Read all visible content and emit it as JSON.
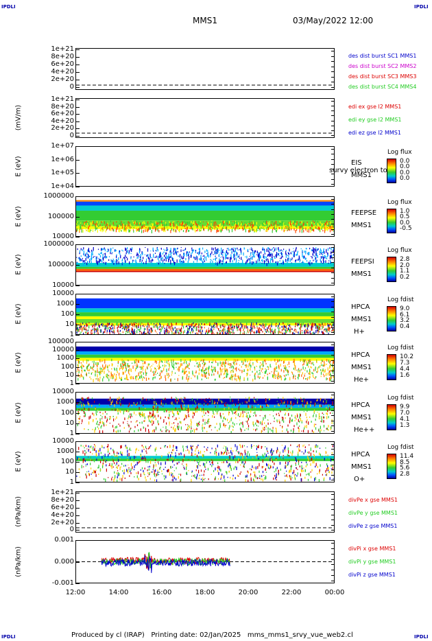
{
  "header": {
    "corner_tl": "IPDLI",
    "corner_tr": "IPDLI",
    "corner_bl": "IPDLI",
    "corner_br": "IPDLI",
    "spacecraft": "MMS1",
    "date": "03/May/2022 12:00"
  },
  "footer": "Produced by cl (IRAP)   Printing date: 02/Jan/2025   mms_mms1_srvy_vue_web2.cl",
  "colors": {
    "red": "#dd0000",
    "green": "#22cc22",
    "blue": "#0000cc",
    "magenta": "#cc00cc"
  },
  "chart_data": [
    {
      "type": "line",
      "ylabel": "",
      "yticks": [
        "1e+21",
        "8e+20",
        "6e+20",
        "4e+20",
        "2e+20",
        "0"
      ],
      "ylim": [
        0,
        1e+21
      ],
      "series": [
        {
          "name": "des dist burst SC1 MMS1",
          "color": "#0000cc"
        },
        {
          "name": "des dist burst SC2 MMS2",
          "color": "#cc00cc"
        },
        {
          "name": "des dist burst SC3 MMS3",
          "color": "#dd0000"
        },
        {
          "name": "des dist burst SC4 MMS4",
          "color": "#22cc22"
        }
      ]
    },
    {
      "type": "line",
      "ylabel": "(mV/m)",
      "yticks": [
        "1e+21",
        "8e+20",
        "6e+20",
        "4e+20",
        "2e+20",
        "0"
      ],
      "ylim": [
        0,
        1e+21
      ],
      "series": [
        {
          "name": "edi ex gse l2 MMS1",
          "color": "#dd0000"
        },
        {
          "name": "edi ey gse l2 MMS1",
          "color": "#22cc22"
        },
        {
          "name": "edi ez gse l2 MMS1",
          "color": "#0000cc"
        }
      ]
    },
    {
      "type": "heatmap",
      "ylabel": "E (eV)",
      "yticks": [
        "1e+07",
        "1e+06",
        "1e+05",
        "1e+04"
      ],
      "labels": [
        "EIS",
        "MMS1"
      ],
      "overlay": "survy electron to",
      "cbar_title": "Log flux",
      "cbar_ticks": [
        "0.0",
        "0.0",
        "0.0",
        "0.0"
      ],
      "empty": true
    },
    {
      "type": "heatmap",
      "ylabel": "E (eV)",
      "yticks": [
        "1000000",
        "100000",
        "10000"
      ],
      "labels": [
        "FEEPSE",
        "MMS1"
      ],
      "cbar_title": "Log flux",
      "cbar_ticks": [
        "1.0",
        "0.5",
        "0.0",
        "-0.5"
      ]
    },
    {
      "type": "heatmap",
      "ylabel": "E (eV)",
      "yticks": [
        "1000000",
        "100000",
        "10000"
      ],
      "labels": [
        "FEEPSI",
        "MMS1"
      ],
      "cbar_title": "Log flux",
      "cbar_ticks": [
        "2.8",
        "2.0",
        "1.1",
        "0.2"
      ]
    },
    {
      "type": "heatmap",
      "ylabel": "E (eV)",
      "yticks": [
        "10000",
        "1000",
        "100",
        "10",
        "1"
      ],
      "labels": [
        "HPCA",
        "MMS1",
        "H+"
      ],
      "cbar_title": "Log fdist",
      "cbar_ticks": [
        "9.0",
        "6.1",
        "3.2",
        "0.4"
      ]
    },
    {
      "type": "heatmap",
      "ylabel": "E (eV)",
      "yticks": [
        "100000",
        "10000",
        "1000",
        "100",
        "10",
        "1"
      ],
      "labels": [
        "HPCA",
        "MMS1",
        "He+"
      ],
      "cbar_title": "Log fdist",
      "cbar_ticks": [
        "10.2",
        "7.3",
        "4.4",
        "1.6"
      ]
    },
    {
      "type": "heatmap",
      "ylabel": "E (eV)",
      "yticks": [
        "10000",
        "1000",
        "100",
        "10",
        "1"
      ],
      "labels": [
        "HPCA",
        "MMS1",
        "He++"
      ],
      "cbar_title": "Log fdist",
      "cbar_ticks": [
        "9.9",
        "7.0",
        "4.1",
        "1.3"
      ]
    },
    {
      "type": "heatmap",
      "ylabel": "E (eV)",
      "yticks": [
        "10000",
        "1000",
        "100",
        "10",
        "1"
      ],
      "labels": [
        "HPCA",
        "MMS1",
        "O+"
      ],
      "cbar_title": "Log fdist",
      "cbar_ticks": [
        "11.4",
        "8.5",
        "5.6",
        "2.8"
      ]
    },
    {
      "type": "line",
      "ylabel": "(nPa/km)",
      "yticks": [
        "1e+21",
        "8e+20",
        "6e+20",
        "4e+20",
        "2e+20",
        "0"
      ],
      "ylim": [
        0,
        1e+21
      ],
      "series": [
        {
          "name": "divPe x gse MMS1",
          "color": "#dd0000"
        },
        {
          "name": "divPe y gse MMS1",
          "color": "#22cc22"
        },
        {
          "name": "divPe z gse MMS1",
          "color": "#0000cc"
        }
      ]
    },
    {
      "type": "line",
      "ylabel": "(nPa/km)",
      "yticks": [
        "0.001",
        "0.000",
        "-0.001"
      ],
      "ylim": [
        -0.0015,
        0.0015
      ],
      "series": [
        {
          "name": "divPi x gse MMS1",
          "color": "#dd0000"
        },
        {
          "name": "divPi y gse MMS1",
          "color": "#22cc22"
        },
        {
          "name": "divPi z gse MMS1",
          "color": "#0000cc"
        }
      ]
    }
  ],
  "xaxis": {
    "ticks": [
      "12:00",
      "14:00",
      "16:00",
      "18:00",
      "20:00",
      "22:00",
      "00:00"
    ]
  }
}
